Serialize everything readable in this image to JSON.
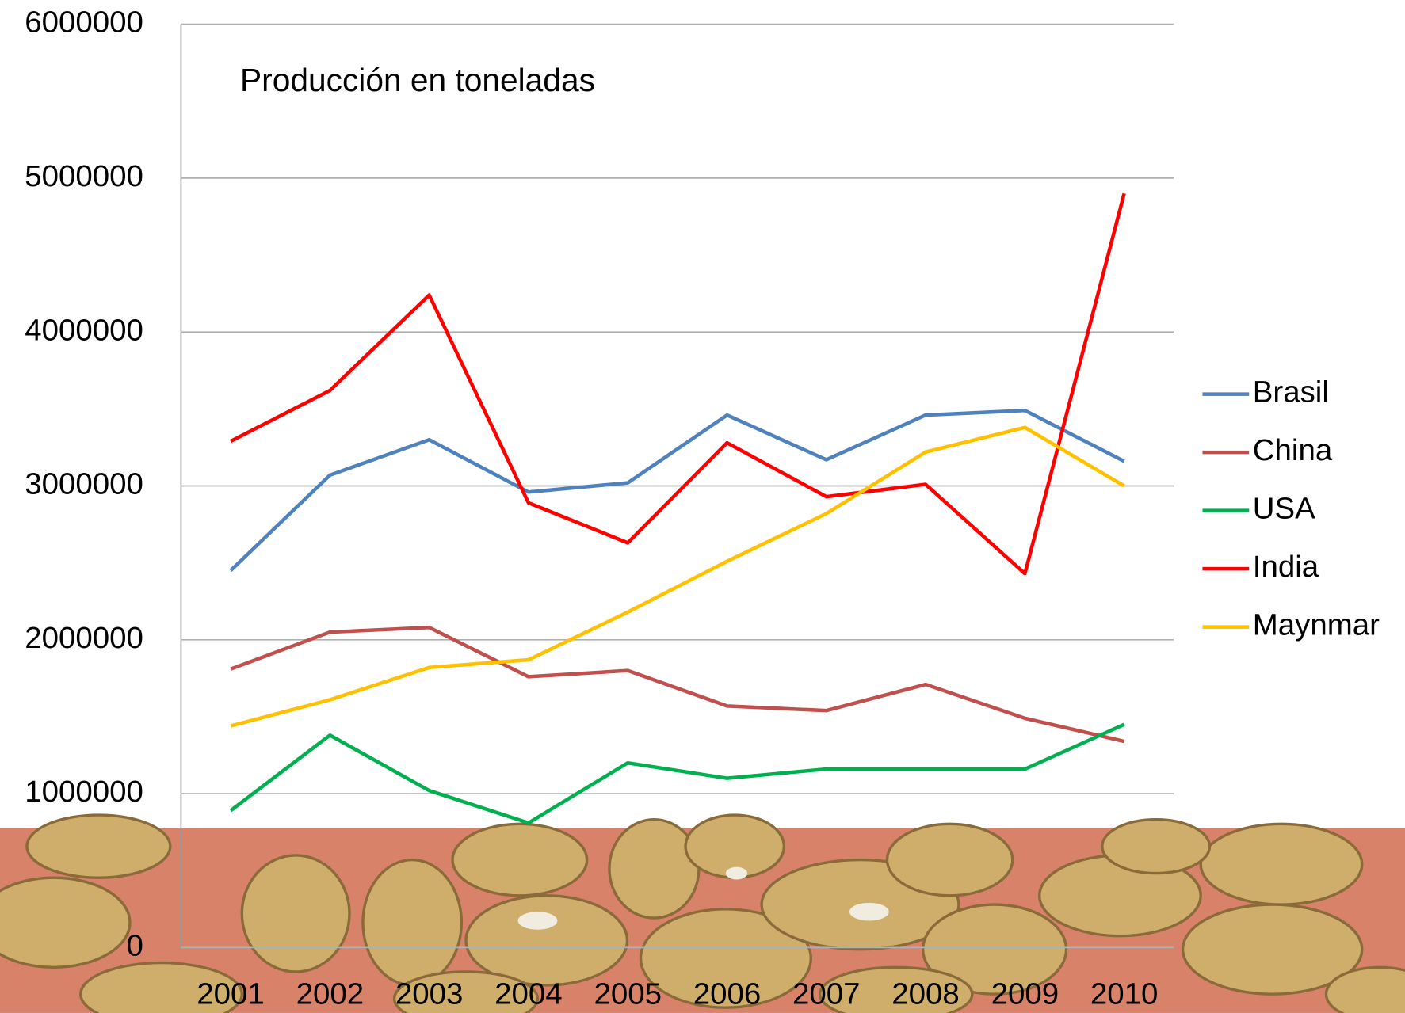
{
  "chart_data": {
    "type": "line",
    "title": "Producción en toneladas",
    "categories": [
      "2001",
      "2002",
      "2003",
      "2004",
      "2005",
      "2006",
      "2007",
      "2008",
      "2009",
      "2010"
    ],
    "series": [
      {
        "name": "Brasil",
        "color": "#4f81bd",
        "values": [
          2450000,
          3070000,
          3300000,
          2960000,
          3020000,
          3460000,
          3170000,
          3460000,
          3490000,
          3160000
        ]
      },
      {
        "name": "China",
        "color": "#c0504d",
        "values": [
          1810000,
          2050000,
          2080000,
          1760000,
          1800000,
          1570000,
          1540000,
          1710000,
          1490000,
          1340000
        ]
      },
      {
        "name": "USA",
        "color": "#00b050",
        "values": [
          890000,
          1380000,
          1020000,
          810000,
          1200000,
          1100000,
          1160000,
          1160000,
          1160000,
          1450000
        ]
      },
      {
        "name": "India",
        "color": "#ff0000",
        "values": [
          3290000,
          3620000,
          4240000,
          2890000,
          2630000,
          3280000,
          2930000,
          3010000,
          2430000,
          4900000
        ]
      },
      {
        "name": "Maynmar",
        "color": "#ffc000",
        "values": [
          1440000,
          1610000,
          1820000,
          1870000,
          2180000,
          2510000,
          2820000,
          3220000,
          3380000,
          3000000
        ]
      }
    ],
    "ylim": [
      0,
      6000000
    ],
    "yticks": [
      0,
      1000000,
      2000000,
      3000000,
      4000000,
      5000000,
      6000000
    ],
    "grid": true
  }
}
